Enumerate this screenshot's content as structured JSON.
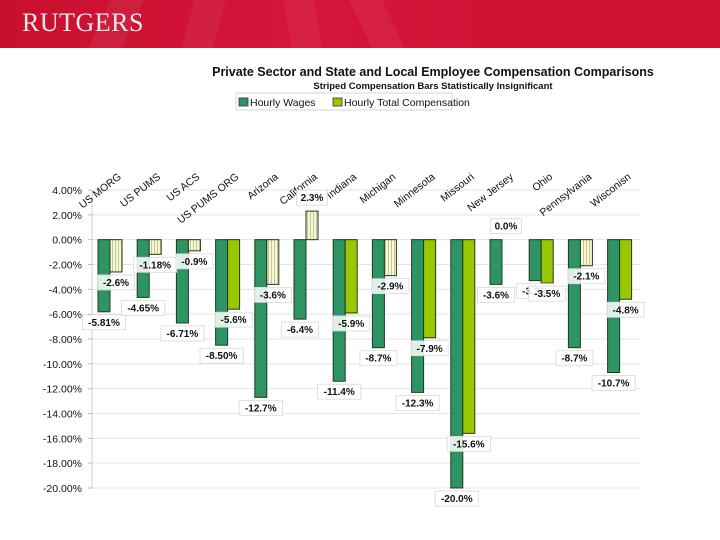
{
  "header": {
    "logo_text": "RUTGERS",
    "brand_color": "#cc1133"
  },
  "chart_data": {
    "type": "bar",
    "title": "Private Sector and State and Local Employee Compensation Comparisons",
    "subtitle": "Striped Compensation Bars Statistically Insignificant",
    "xlabel": "",
    "ylabel": "",
    "ylim": [
      -20,
      4
    ],
    "yticks": [
      4,
      2,
      0,
      -2,
      -4,
      -6,
      -8,
      -10,
      -12,
      -14,
      -16,
      -18,
      -20
    ],
    "ytick_labels": [
      "4.00%",
      "2.00%",
      "0.00%",
      "-2.00%",
      "-4.00%",
      "-6.00%",
      "-8.00%",
      "-10.00%",
      "-12.00%",
      "-14.00%",
      "-16.00%",
      "-18.00%",
      "-20.00%"
    ],
    "grid": true,
    "legend_position": "top-center",
    "categories": [
      "US MORG",
      "US PUMS",
      "US ACS",
      "US PUMS ORG",
      "Arizona",
      "California",
      "Indiana",
      "Michigan",
      "Minnesota",
      "Missouri",
      "New Jersey",
      "Ohio",
      "Pennsylvania",
      "Wisconisn"
    ],
    "series": [
      {
        "name": "Hourly Wages",
        "color": "#2e9464",
        "values": [
          -5.81,
          -4.65,
          -6.71,
          -8.5,
          -12.7,
          -6.4,
          -11.4,
          -8.7,
          -12.3,
          -20.0,
          -3.6,
          -3.3,
          -8.7,
          -10.7
        ],
        "labels": [
          "-5.81%",
          "-4.65%",
          "-6.71%",
          "-8.50%",
          "-12.7%",
          "-6.4%",
          "-11.4%",
          "-8.7%",
          "-12.3%",
          "-20.0%",
          "-3.6%",
          "-3.3%",
          "-8.7%",
          "-10.7%"
        ]
      },
      {
        "name": "Hourly Total Compensation",
        "color": "#99c800",
        "striped_color": "#f8f8d0",
        "values": [
          -2.6,
          -1.18,
          -0.9,
          -5.6,
          -3.6,
          2.3,
          -5.9,
          -2.9,
          -7.9,
          -15.6,
          0.0,
          -3.5,
          -2.1,
          -4.8
        ],
        "labels": [
          "-2.6%",
          "-1.18%",
          "-0.9%",
          "-5.6%",
          "-3.6%",
          "2.3%",
          "-5.9%",
          "-2.9%",
          "-7.9%",
          "-15.6%",
          "0.0%",
          "-3.5%",
          "-2.1%",
          "-4.8%"
        ],
        "insignificant": [
          true,
          true,
          true,
          false,
          true,
          true,
          false,
          true,
          false,
          false,
          false,
          false,
          true,
          false
        ]
      }
    ]
  }
}
